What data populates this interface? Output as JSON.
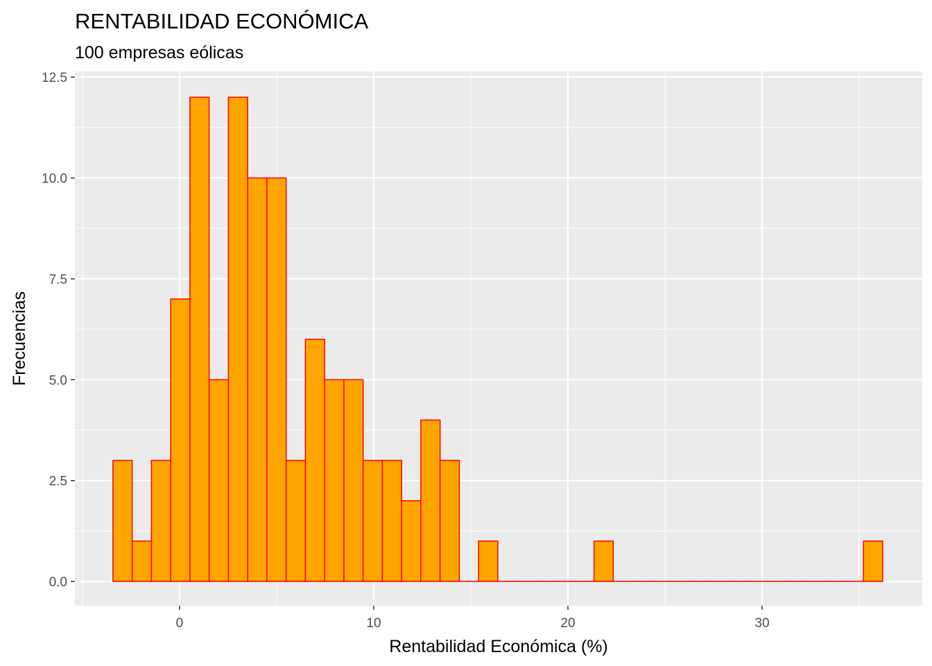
{
  "chart_data": {
    "type": "bar",
    "subtype": "histogram",
    "title": "RENTABILIDAD ECONÓMICA",
    "subtitle": "100 empresas eólicas",
    "xlabel": "Rentabilidad Económica (%)",
    "ylabel": "Frecuencias",
    "bin_start": -3.43,
    "bin_width": 0.991,
    "counts": [
      3,
      1,
      3,
      7,
      12,
      5,
      12,
      10,
      10,
      3,
      6,
      5,
      5,
      3,
      3,
      2,
      4,
      3,
      0,
      1,
      0,
      0,
      0,
      0,
      0,
      1,
      0,
      0,
      0,
      0,
      0,
      0,
      0,
      0,
      0,
      0,
      0,
      0,
      0,
      1
    ],
    "xlim": [
      -5.39,
      38.25
    ],
    "ylim": [
      -0.6,
      12.64
    ],
    "x_ticks": [
      0,
      10,
      20,
      30
    ],
    "x_tick_labels": [
      "0",
      "10",
      "20",
      "30"
    ],
    "y_ticks": [
      0,
      2.5,
      5,
      7.5,
      10,
      12.5
    ],
    "y_tick_labels": [
      "0.0",
      "2.5",
      "5.0",
      "7.5",
      "10.0",
      "12.5"
    ],
    "grid": true,
    "colors": {
      "fill": "#FFA500",
      "stroke": "#FF0000",
      "panel": "#EBEBEB",
      "grid": "#FFFFFF"
    }
  }
}
